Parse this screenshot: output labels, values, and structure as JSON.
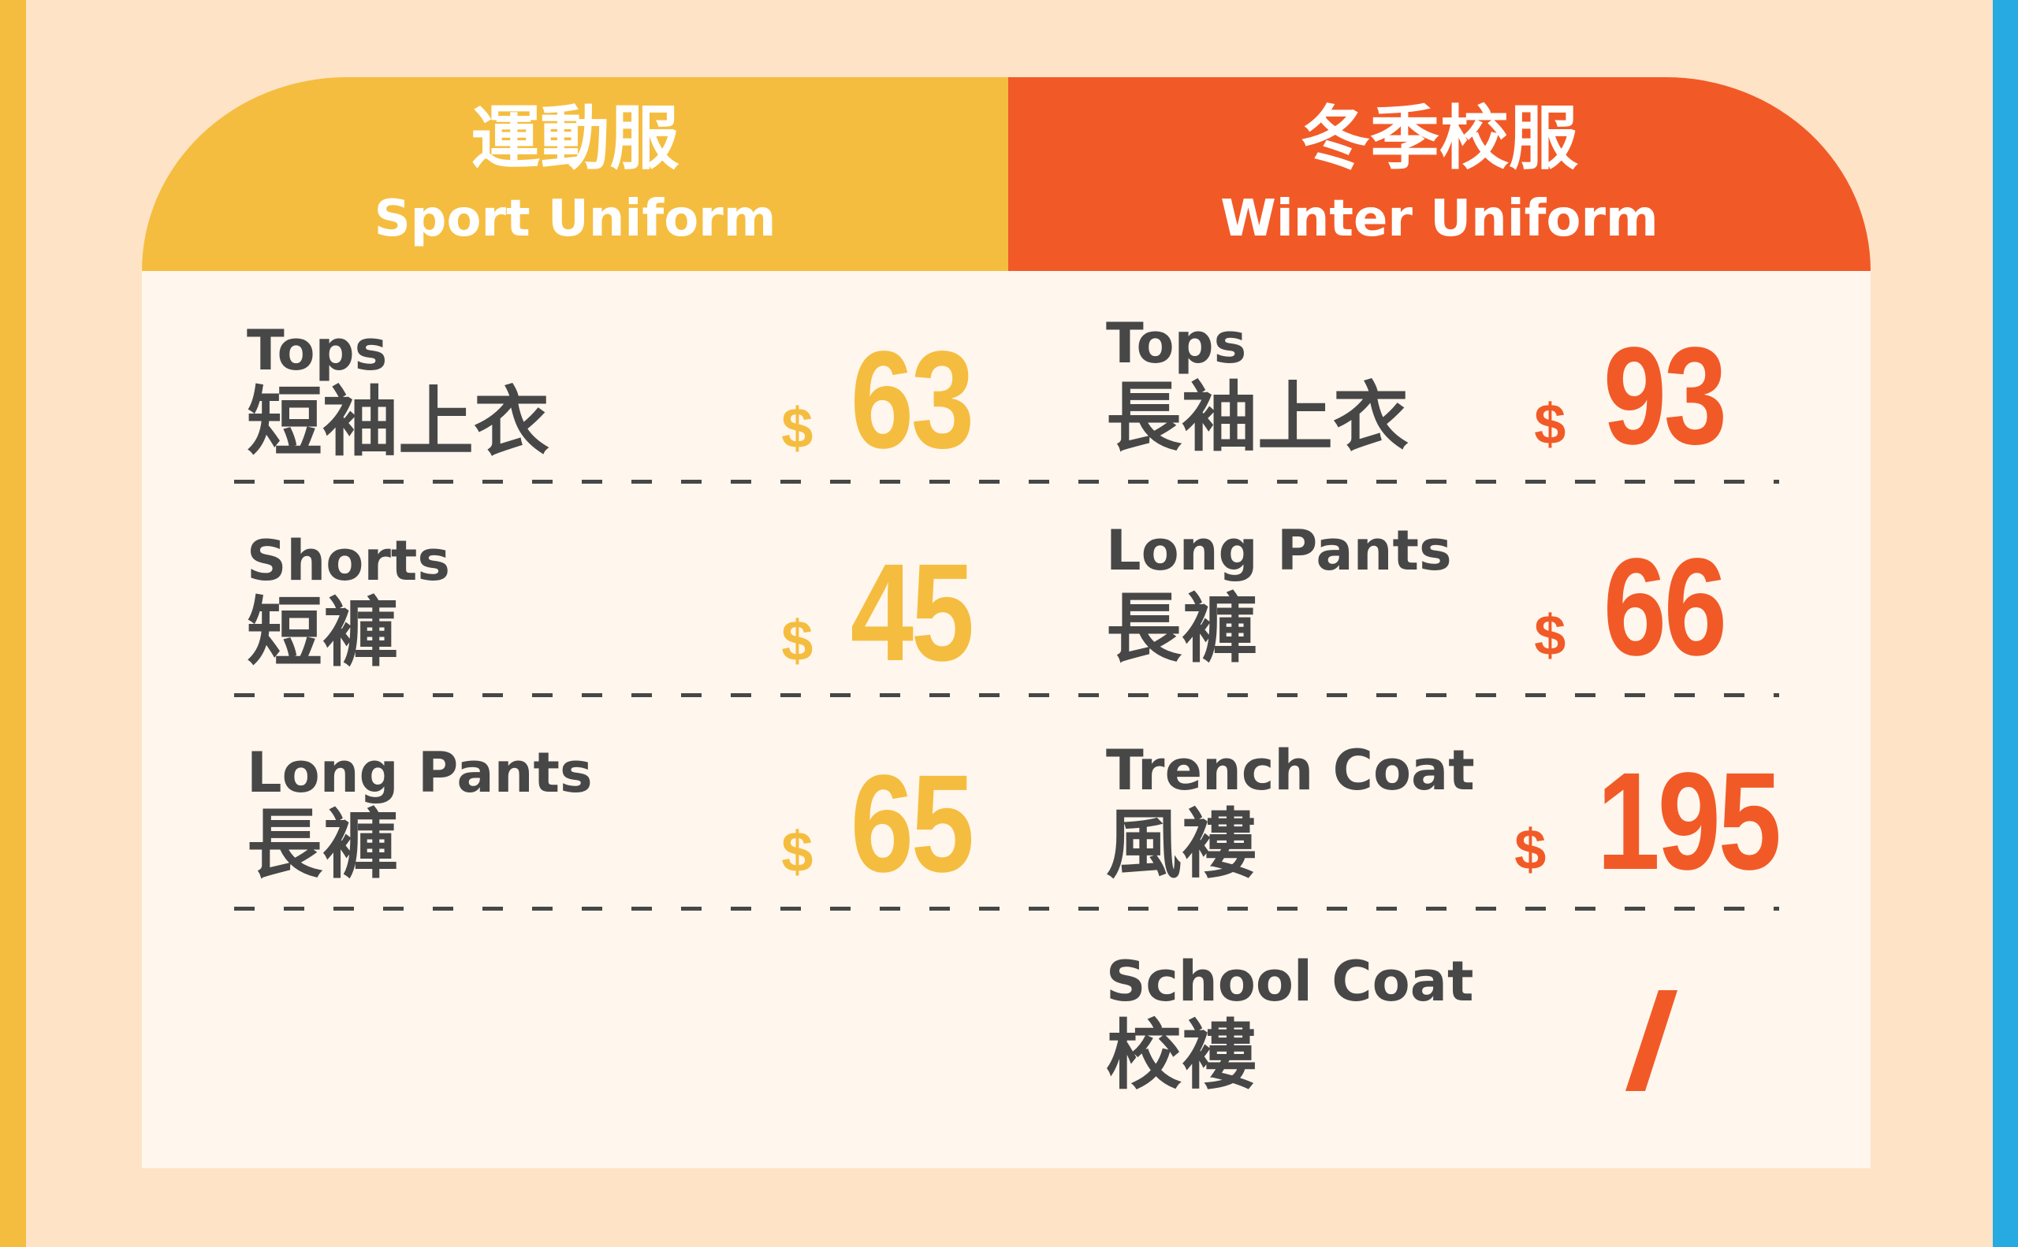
{
  "colors": {
    "sport": "#f5bd3f",
    "winter": "#f15a27",
    "text": "#474747",
    "background": "#ffe3c6",
    "card": "#fff6ed",
    "side_accent": "#27aae1"
  },
  "sport": {
    "title_zh": "運動服",
    "title_en": "Sport Uniform",
    "items": [
      {
        "en": "Tops",
        "zh": "短袖上衣",
        "currency": "$",
        "price": "63"
      },
      {
        "en": "Shorts",
        "zh": "短褲",
        "currency": "$",
        "price": "45"
      },
      {
        "en": "Long Pants",
        "zh": "長褲",
        "currency": "$",
        "price": "65"
      }
    ]
  },
  "winter": {
    "title_zh": "冬季校服",
    "title_en": "Winter Uniform",
    "items": [
      {
        "en": "Tops",
        "zh": "長袖上衣",
        "currency": "$",
        "price": "93"
      },
      {
        "en": "Long Pants",
        "zh": "長褲",
        "currency": "$",
        "price": "66"
      },
      {
        "en": "Trench Coat",
        "zh": "風褸",
        "currency": "$",
        "price": "195"
      },
      {
        "en": "School Coat",
        "zh": "校褸",
        "price": "/"
      }
    ]
  }
}
